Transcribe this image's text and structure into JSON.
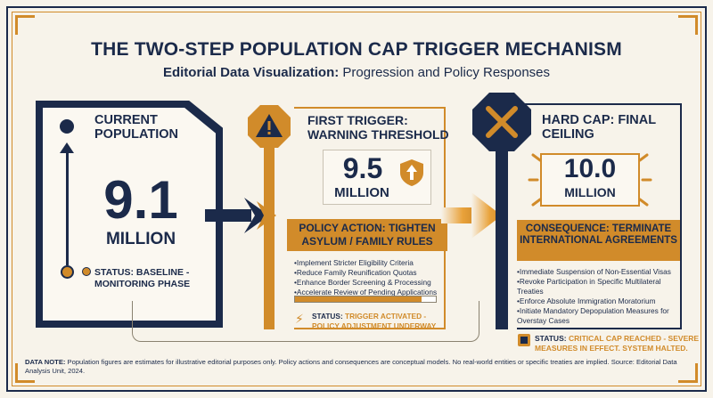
{
  "header": {
    "title": "THE TWO-STEP POPULATION CAP TRIGGER MECHANISM",
    "subtitle_bold": "Editorial Data Visualization:",
    "subtitle_rest": " Progression and Policy Responses"
  },
  "current": {
    "title": "CURRENT POPULATION",
    "value": "9.1",
    "unit": "MILLION",
    "status": "STATUS: BASELINE - MONITORING PHASE"
  },
  "first_trigger": {
    "title": "FIRST TRIGGER: WARNING THRESHOLD",
    "value": "9.5",
    "unit": "MILLION",
    "action": "POLICY ACTION: TIGHTEN ASYLUM / FAMILY RULES",
    "items": [
      "Implement Stricter Eligibility Criteria",
      "Reduce Family Reunification Quotas",
      "Enhance Border Screening & Processing",
      "Accelerate Review of Pending Applications"
    ],
    "progress": 0.9,
    "status_label": "STATUS:",
    "status_text": "TRIGGER ACTIVATED - POLICY ADJUSTMENT UNDERWAY"
  },
  "hard_cap": {
    "title": "HARD CAP: FINAL CEILING",
    "value": "10.0",
    "unit": "MILLION",
    "consequence": "CONSEQUENCE: TERMINATE INTERNATIONAL AGREEMENTS",
    "items": [
      "Immediate Suspension of Non-Essential Visas",
      "Revoke Participation in Specific Multilateral Treaties",
      "Enforce Absolute Immigration Moratorium",
      "Initiate Mandatory Depopulation Measures for Overstay Cases"
    ],
    "status_label": "STATUS:",
    "status_text": "CRITICAL CAP REACHED - SEVERE MEASURES IN EFFECT. SYSTEM HALTED."
  },
  "note": {
    "label": "DATA NOTE:",
    "text": " Population figures are estimates for illustrative editorial purposes only. Policy actions and consequences are conceptual models. No real-world entities or specific treaties are implied. Source: Editorial Data Analysis Unit, 2024."
  },
  "colors": {
    "navy": "#1b2a4a",
    "gold": "#d18b2a",
    "paper": "#f7f3ea"
  },
  "icons": [
    "warning-icon",
    "up-arrow-shield-icon",
    "stop-octagon-icon",
    "lightning-icon"
  ]
}
